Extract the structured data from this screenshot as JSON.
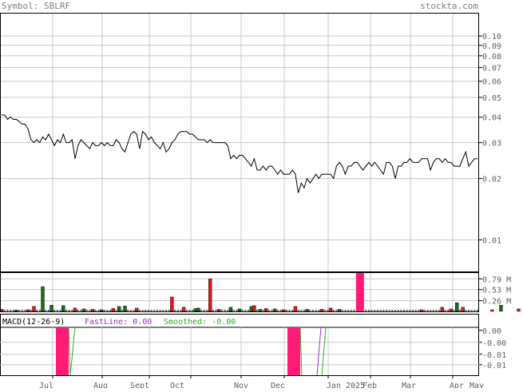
{
  "header": {
    "symbol": "Symbol: SBLRF",
    "brand": "stockta.com"
  },
  "chart_data": [
    {
      "type": "line",
      "name": "price",
      "scale": "log",
      "ylim": [
        0.007,
        0.13
      ],
      "yticks": [
        {
          "v": 0.1,
          "label": "0.10"
        },
        {
          "v": 0.09,
          "label": "0.09"
        },
        {
          "v": 0.08,
          "label": "0.08"
        },
        {
          "v": 0.07,
          "label": "0.07"
        },
        {
          "v": 0.06,
          "label": "0.06"
        },
        {
          "v": 0.05,
          "label": "0.05"
        },
        {
          "v": 0.04,
          "label": "0.04"
        },
        {
          "v": 0.03,
          "label": "0.03"
        },
        {
          "v": 0.02,
          "label": "0.02"
        },
        {
          "v": 0.01,
          "label": "0.01"
        }
      ],
      "xlabels": [
        "Jul",
        "Aug",
        "Sept",
        "Oct",
        "Nov",
        "Dec",
        "Jan 2025",
        "Feb",
        "Mar",
        "Apr",
        "May"
      ],
      "values": [
        0.041,
        0.041,
        0.039,
        0.04,
        0.039,
        0.039,
        0.038,
        0.037,
        0.037,
        0.035,
        0.031,
        0.03,
        0.031,
        0.03,
        0.032,
        0.031,
        0.033,
        0.031,
        0.029,
        0.031,
        0.03,
        0.033,
        0.03,
        0.03,
        0.031,
        0.025,
        0.029,
        0.031,
        0.03,
        0.029,
        0.028,
        0.03,
        0.029,
        0.029,
        0.03,
        0.029,
        0.03,
        0.029,
        0.029,
        0.031,
        0.03,
        0.028,
        0.027,
        0.03,
        0.033,
        0.034,
        0.033,
        0.028,
        0.034,
        0.033,
        0.031,
        0.032,
        0.03,
        0.029,
        0.028,
        0.03,
        0.027,
        0.028,
        0.03,
        0.031,
        0.033,
        0.034,
        0.034,
        0.034,
        0.033,
        0.033,
        0.032,
        0.031,
        0.031,
        0.031,
        0.03,
        0.031,
        0.03,
        0.03,
        0.03,
        0.03,
        0.03,
        0.029,
        0.025,
        0.026,
        0.025,
        0.026,
        0.026,
        0.025,
        0.024,
        0.023,
        0.025,
        0.022,
        0.022,
        0.023,
        0.022,
        0.023,
        0.023,
        0.022,
        0.021,
        0.022,
        0.021,
        0.021,
        0.021,
        0.022,
        0.021,
        0.017,
        0.019,
        0.018,
        0.02,
        0.019,
        0.02,
        0.021,
        0.02,
        0.021,
        0.021,
        0.021,
        0.021,
        0.02,
        0.023,
        0.024,
        0.023,
        0.021,
        0.023,
        0.023,
        0.024,
        0.024,
        0.023,
        0.022,
        0.023,
        0.024,
        0.023,
        0.024,
        0.023,
        0.022,
        0.021,
        0.024,
        0.024,
        0.023,
        0.02,
        0.023,
        0.023,
        0.024,
        0.024,
        0.025,
        0.024,
        0.024,
        0.024,
        0.025,
        0.025,
        0.025,
        0.022,
        0.024,
        0.025,
        0.025,
        0.024,
        0.025,
        0.024,
        0.024,
        0.023,
        0.023,
        0.023,
        0.025,
        0.027,
        0.023,
        0.024,
        0.025,
        0.025
      ]
    },
    {
      "type": "bar",
      "name": "volume",
      "ylim": [
        0,
        0.95
      ],
      "yticks": [
        {
          "v": 0.79,
          "label": "0.79 M"
        },
        {
          "v": 0.53,
          "label": "0.53 M"
        },
        {
          "v": 0.26,
          "label": "0.26 M"
        }
      ],
      "bars": [
        {
          "i": 0,
          "v": 0.05,
          "c": "red"
        },
        {
          "i": 5,
          "v": 0.03,
          "c": "green"
        },
        {
          "i": 9,
          "v": 0.04,
          "c": "red"
        },
        {
          "i": 11,
          "v": 0.12,
          "c": "red"
        },
        {
          "i": 14,
          "v": 0.6,
          "c": "green"
        },
        {
          "i": 17,
          "v": 0.15,
          "c": "green"
        },
        {
          "i": 21,
          "v": 0.14,
          "c": "green"
        },
        {
          "i": 25,
          "v": 0.08,
          "c": "red"
        },
        {
          "i": 28,
          "v": 0.06,
          "c": "green"
        },
        {
          "i": 31,
          "v": 0.05,
          "c": "red"
        },
        {
          "i": 34,
          "v": 0.04,
          "c": "green"
        },
        {
          "i": 38,
          "v": 0.07,
          "c": "red"
        },
        {
          "i": 40,
          "v": 0.12,
          "c": "green"
        },
        {
          "i": 42,
          "v": 0.13,
          "c": "green"
        },
        {
          "i": 46,
          "v": 0.08,
          "c": "red"
        },
        {
          "i": 58,
          "v": 0.35,
          "c": "red"
        },
        {
          "i": 62,
          "v": 0.1,
          "c": "red"
        },
        {
          "i": 66,
          "v": 0.07,
          "c": "green"
        },
        {
          "i": 67,
          "v": 0.08,
          "c": "green"
        },
        {
          "i": 71,
          "v": 0.79,
          "c": "red"
        },
        {
          "i": 74,
          "v": 0.05,
          "c": "red"
        },
        {
          "i": 78,
          "v": 0.1,
          "c": "green"
        },
        {
          "i": 81,
          "v": 0.06,
          "c": "green"
        },
        {
          "i": 85,
          "v": 0.12,
          "c": "green"
        },
        {
          "i": 86,
          "v": 0.14,
          "c": "red"
        },
        {
          "i": 88,
          "v": 0.05,
          "c": "green"
        },
        {
          "i": 90,
          "v": 0.07,
          "c": "red"
        },
        {
          "i": 93,
          "v": 0.06,
          "c": "green"
        },
        {
          "i": 96,
          "v": 0.04,
          "c": "red"
        },
        {
          "i": 100,
          "v": 0.12,
          "c": "red"
        },
        {
          "i": 104,
          "v": 0.05,
          "c": "green"
        },
        {
          "i": 109,
          "v": 0.05,
          "c": "red"
        },
        {
          "i": 112,
          "v": 0.08,
          "c": "red"
        },
        {
          "i": 115,
          "v": 0.05,
          "c": "green"
        },
        {
          "i": 143,
          "v": 0.04,
          "c": "red"
        },
        {
          "i": 150,
          "v": 0.1,
          "c": "red"
        },
        {
          "i": 153,
          "v": 0.06,
          "c": "red"
        },
        {
          "i": 155,
          "v": 0.21,
          "c": "green"
        },
        {
          "i": 157,
          "v": 0.1,
          "c": "red"
        },
        {
          "i": 167,
          "v": 0.04,
          "c": "red"
        },
        {
          "i": 170,
          "v": 0.15,
          "c": "green"
        },
        {
          "i": 176,
          "v": 0.06,
          "c": "red"
        },
        {
          "i": 182,
          "v": 0.23,
          "c": "red"
        },
        {
          "i": 185,
          "v": 0.05,
          "c": "green"
        }
      ],
      "highlights": [
        {
          "i": 122,
          "v": 0.95
        }
      ]
    },
    {
      "type": "line",
      "name": "macd",
      "legend": {
        "title": "MACD(12-26-9)",
        "fast": "FastLine: 0.00",
        "smoothed": "Smoothed: -0.00"
      },
      "ylim": [
        -0.015,
        0.001
      ],
      "yticks": [
        {
          "v": 0.0,
          "label": "0.00"
        },
        {
          "v": -0.004,
          "label": "-0.00"
        },
        {
          "v": -0.008,
          "label": "-0.01"
        },
        {
          "v": -0.0115,
          "label": "-0.01"
        }
      ]
    }
  ],
  "colors": {
    "up": "#1a6b1a",
    "down": "#dd1a1a",
    "highlight": "#ff1a75",
    "line": "#000000",
    "grid": "#c8c8c8",
    "frame": "#000000",
    "fast": "#9b30c9",
    "smoothed": "#2eaa2e"
  }
}
